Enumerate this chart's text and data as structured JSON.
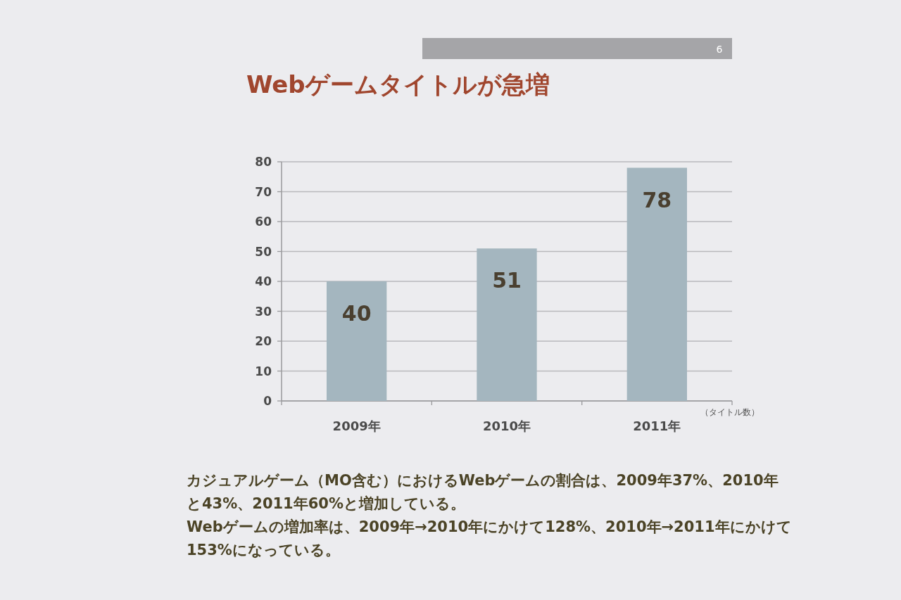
{
  "chart_data": {
    "type": "bar",
    "title": "Webゲームタイトルが急増",
    "categories": [
      "2009年",
      "2010年",
      "2011年"
    ],
    "values": [
      40,
      51,
      78
    ],
    "color": "#a4b6bf",
    "ylim": [
      0,
      80
    ],
    "yticks": [
      0,
      10,
      20,
      30,
      40,
      50,
      60,
      70,
      80
    ],
    "grid": "y",
    "data_labels": true,
    "annotations": [
      "（タイトル数）",
      "6",
      "カジュアルゲーム（MO含む）におけるWebゲームの割合は、2009年37%、2010年と43%、2011年60%と増加している。",
      "Webゲームの増加率は、2009年→2010年にかけて128%、2010年→2011年にかけて153%になっている。"
    ]
  }
}
